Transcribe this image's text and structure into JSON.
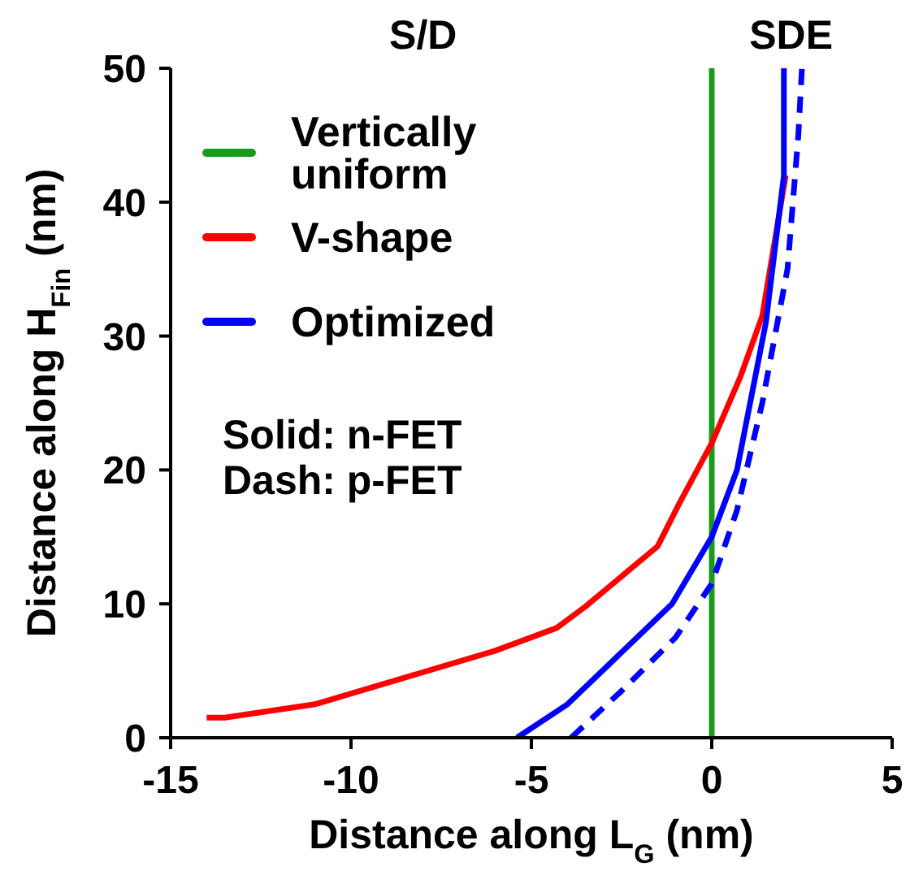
{
  "chart_data": {
    "type": "line",
    "xlabel": "Distance along L$_{G}$ (nm)",
    "ylabel": "Distance along H$_{Fin}$ (nm)",
    "xlim": [
      -15,
      5
    ],
    "xticks": [
      -15,
      -10,
      -5,
      0,
      5
    ],
    "ylim": [
      0,
      50
    ],
    "yticks": [
      0,
      10,
      20,
      30,
      40,
      50
    ],
    "legend": "top left",
    "marker": "none",
    "annotations": [
      "S/D",
      "SDE",
      "Solid: n-FET",
      "Dash: p-FET"
    ],
    "series": [
      {
        "name": "Vertically uniform",
        "color": "#1a9a1a",
        "line_style": "solid",
        "x": [
          0,
          0
        ],
        "values": [
          0,
          50
        ]
      },
      {
        "name": "V-shape",
        "color": "#ff0000",
        "line_style": "solid",
        "x": [
          -14,
          -13.5,
          -11,
          -8.5,
          -6,
          -4.3,
          -3.5,
          -1.5,
          -0.9,
          0,
          0.8,
          1.4,
          2.05
        ],
        "values": [
          1.5,
          1.5,
          2.5,
          4.5,
          6.5,
          8.2,
          9.8,
          14.3,
          17.5,
          22,
          27,
          31.5,
          42
        ]
      },
      {
        "name": "Optimized",
        "color": "#0000ff",
        "line_style": "solid",
        "x": [
          -5.4,
          -4,
          -1.1,
          0,
          0.7,
          1.5,
          2,
          2
        ],
        "values": [
          0,
          2.5,
          10,
          15,
          20,
          31,
          42,
          50
        ]
      },
      {
        "color": "#0000ff",
        "line_style": "dashed",
        "x": [
          -3.9,
          -2.5,
          -1,
          0,
          0.7,
          1.4,
          2.1,
          2.4,
          2.5
        ],
        "values": [
          0,
          3.5,
          7.5,
          11.5,
          17,
          25,
          35,
          45,
          50
        ]
      }
    ]
  }
}
